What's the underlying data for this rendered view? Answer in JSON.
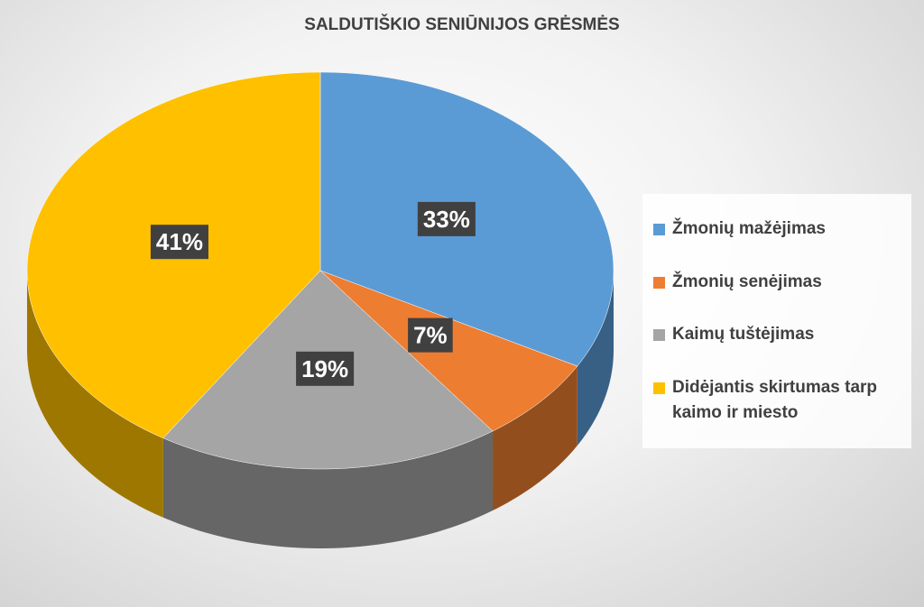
{
  "chart_data": {
    "type": "pie",
    "title": "SALDUTIŠKIO SENIŪNIJOS GRĖSMĖS",
    "categories": [
      "Žmonių mažėjimas",
      "Žmonių senėjimas",
      "Kaimų tuštėjimas",
      "Didėjantis skirtumas tarp kaimo ir miesto"
    ],
    "values": [
      33,
      7,
      19,
      41
    ],
    "value_labels": [
      "33%",
      "7%",
      "19%",
      "41%"
    ],
    "colors": [
      "#5b9bd5",
      "#ed7d31",
      "#a5a5a5",
      "#ffc000"
    ]
  }
}
